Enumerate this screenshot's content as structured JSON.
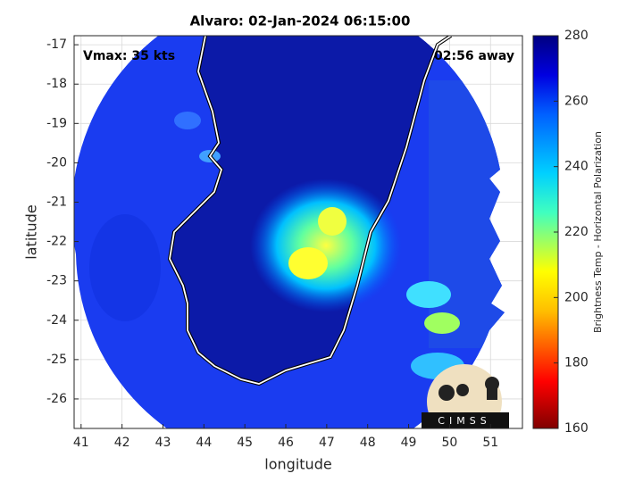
{
  "chart_data": {
    "type": "map",
    "title": "Alvaro: 02-Jan-2024 06:15:00",
    "annotations": [
      "Vmax: 35 kts",
      "02:56 away"
    ],
    "xlabel": "longitude",
    "ylabel": "latitude",
    "xlim": [
      40.83,
      51.78
    ],
    "xticks": [
      41,
      42,
      43,
      44,
      45,
      46,
      47,
      48,
      49,
      50,
      51
    ],
    "ylim": [
      -26.75,
      -16.77
    ],
    "yticks": [
      -17,
      -18,
      -19,
      -20,
      -21,
      -22,
      -23,
      -24,
      -25,
      -26
    ],
    "grid": true,
    "colorbar": {
      "label": "Brightness Temp - Horizontal Polarization",
      "lim": [
        160,
        280
      ],
      "ticks": [
        160,
        180,
        200,
        220,
        240,
        260,
        280
      ]
    },
    "logo": "CIMSS"
  }
}
